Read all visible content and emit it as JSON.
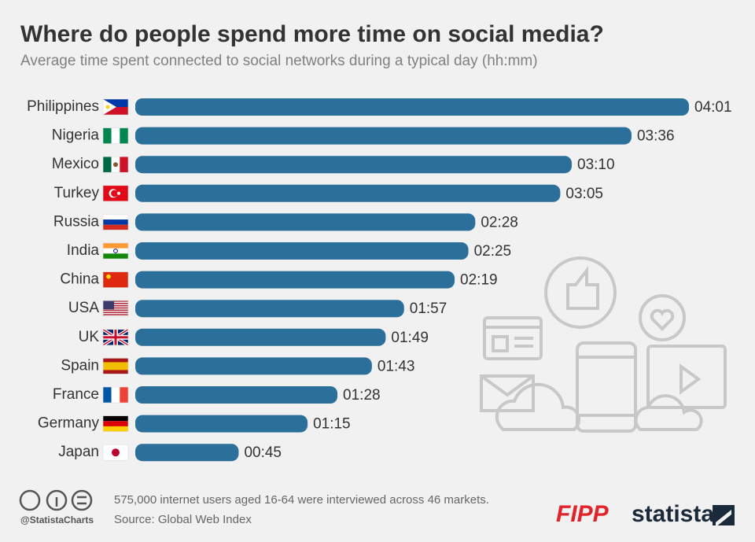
{
  "chart_data": {
    "type": "bar",
    "title": "Where do people spend more time on social media?",
    "subtitle": "Average time spent connected to social networks during a typical day (hh:mm)",
    "categories": [
      "Philippines",
      "Nigeria",
      "Mexico",
      "Turkey",
      "Russia",
      "India",
      "China",
      "USA",
      "UK",
      "Spain",
      "France",
      "Germany",
      "Japan"
    ],
    "values": [
      241,
      216,
      190,
      185,
      148,
      145,
      139,
      117,
      109,
      103,
      88,
      75,
      45
    ],
    "value_labels": [
      "04:01",
      "03:36",
      "03:10",
      "03:05",
      "02:28",
      "02:25",
      "02:19",
      "01:57",
      "01:49",
      "01:43",
      "01:28",
      "01:15",
      "00:45"
    ],
    "color": "#2b6f9b"
  },
  "footer": {
    "handle": "@StatistaCharts",
    "note": "575,000 internet users aged 16-64 were interviewed across 46 markets.",
    "source": "Source: Global Web Index",
    "partner": "FIPP",
    "brand": "statista"
  }
}
